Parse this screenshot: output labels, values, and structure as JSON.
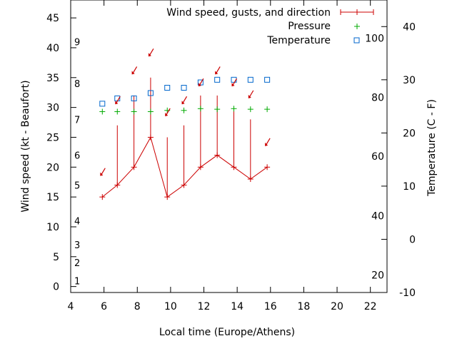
{
  "chart_data": {
    "type": "line",
    "xlabel": "Local time (Europe/Athens)",
    "ylabel_left": "Wind speed (kt - Beaufort)",
    "ylabel_right": "Temperature (C - F)",
    "xlim": [
      4,
      23
    ],
    "ylim_left": [
      -1,
      48
    ],
    "ylim_right": [
      -10,
      45
    ],
    "x_ticks": [
      4,
      6,
      8,
      10,
      12,
      14,
      16,
      18,
      20,
      22
    ],
    "y_left_ticks": [
      0,
      5,
      10,
      15,
      20,
      25,
      30,
      35,
      40,
      45
    ],
    "y_right_ticks_c": [
      -10,
      0,
      10,
      20,
      30,
      40
    ],
    "fahrenheit_labels": [
      {
        "label": "20",
        "at_c": -6.7
      },
      {
        "label": "40",
        "at_c": 4.4
      },
      {
        "label": "60",
        "at_c": 15.6
      },
      {
        "label": "80",
        "at_c": 26.7
      },
      {
        "label": "100",
        "at_c": 37.8
      }
    ],
    "beaufort_labels": [
      {
        "label": "1",
        "at_kt": 1
      },
      {
        "label": "2",
        "at_kt": 4
      },
      {
        "label": "3",
        "at_kt": 7
      },
      {
        "label": "4",
        "at_kt": 11
      },
      {
        "label": "5",
        "at_kt": 17
      },
      {
        "label": "6",
        "at_kt": 22
      },
      {
        "label": "7",
        "at_kt": 28
      },
      {
        "label": "8",
        "at_kt": 34
      },
      {
        "label": "9",
        "at_kt": 41
      }
    ],
    "legend_position": "top-right",
    "grid": false,
    "series": [
      {
        "name": "Wind speed, gusts, and direction",
        "color": "#cc0000",
        "x": [
          5.9,
          6.8,
          7.8,
          8.8,
          9.8,
          10.8,
          11.8,
          12.8,
          13.8,
          14.8,
          15.8
        ],
        "speed": [
          15,
          17,
          20,
          25,
          15,
          17,
          20,
          22,
          20,
          18,
          20
        ],
        "gust": [
          15,
          27,
          32,
          35,
          25,
          27,
          32,
          32,
          30,
          28,
          20
        ]
      },
      {
        "name": "Pressure",
        "color": "#00aa00",
        "x": [
          5.9,
          6.8,
          7.8,
          8.8,
          9.8,
          10.8,
          11.8,
          12.8,
          13.8,
          14.8,
          15.8
        ],
        "values": [
          29.3,
          29.3,
          29.3,
          29.3,
          29.5,
          29.5,
          29.8,
          29.7,
          29.8,
          29.7,
          29.7
        ]
      },
      {
        "name": "Temperature",
        "color": "#0066cc",
        "x": [
          5.9,
          6.8,
          7.8,
          8.8,
          9.8,
          10.8,
          11.8,
          12.8,
          13.8,
          14.8,
          15.8
        ],
        "values_c": [
          25.5,
          26.5,
          26.5,
          27.5,
          28.5,
          28.5,
          29.5,
          30,
          30,
          30,
          30
        ]
      }
    ],
    "direction_arrows": {
      "color": "#cc0000",
      "x": [
        5.9,
        6.8,
        7.8,
        8.8,
        9.8,
        10.8,
        11.8,
        12.8,
        13.8,
        14.8,
        15.8
      ],
      "y": [
        19,
        31,
        36,
        39,
        29,
        31,
        34,
        36,
        34,
        32,
        24
      ]
    }
  }
}
